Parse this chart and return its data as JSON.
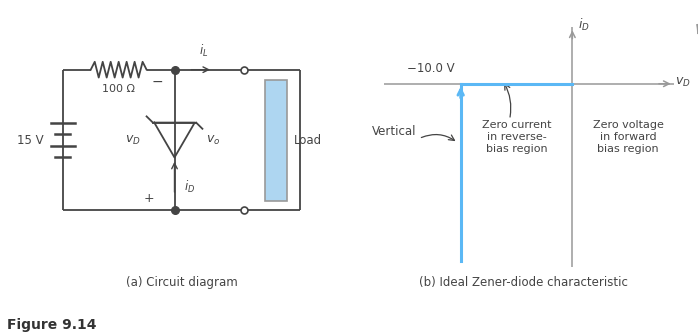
{
  "fig_width": 6.98,
  "fig_height": 3.35,
  "bg_color": "#ffffff",
  "circuit_caption": "(a) Circuit diagram",
  "zener_caption": "(b) Ideal Zener-diode characteristic",
  "label_neg10": "−10.0 V",
  "label_vertical": "Vertical",
  "label_zero_current": "Zero current\nin reverse-\nbias region",
  "label_zero_voltage": "Zero voltage\nin forward\nbias region",
  "label_iD": "$i_D$",
  "label_vD": "$v_D$",
  "label_15V": "15 V",
  "label_100ohm": "100 Ω",
  "label_vD_circuit": "$v_D$",
  "label_vo": "$v_o$",
  "label_iD_circuit": "$i_D$",
  "label_iL": "$i_L$",
  "label_load": "Load",
  "label_figure": "Figure 9.14",
  "line_color_blue": "#5bb8f5",
  "line_color_gray": "#999999",
  "line_color_dark": "#444444",
  "blue_fill": "#aed6f1"
}
